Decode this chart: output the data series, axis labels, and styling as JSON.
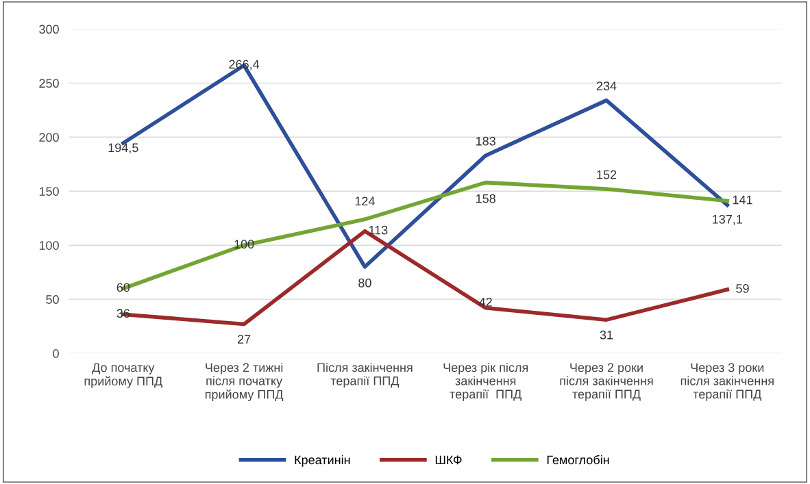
{
  "chart_data": {
    "type": "line",
    "categories": [
      "До початку\nприйому ППД",
      "Через 2 тижні\nпісля початку\nприйому ППД",
      "Після закінчення\nтерапії ППД",
      "Через рік після\nзакінчення\nтерапії  ППД",
      "Через 2 роки\nпісля закінчення\nтерапії ППД",
      "Через 3 роки\nпісля закінчення\nтерапії ППД"
    ],
    "series": [
      {
        "name": "Креатинін",
        "color": "#2e4f9a",
        "values": [
          194.5,
          266.4,
          80,
          183,
          234,
          137.1
        ],
        "value_labels": [
          "194,5",
          "266,4",
          "80",
          "183",
          "234",
          "137,1"
        ]
      },
      {
        "name": "ШКФ",
        "color": "#9c2a2a",
        "values": [
          36,
          27,
          113,
          42,
          31,
          59
        ],
        "value_labels": [
          "36",
          "27",
          "113",
          "42",
          "31",
          "59"
        ]
      },
      {
        "name": "Гемоглобін",
        "color": "#73a533",
        "values": [
          60,
          100,
          124,
          158,
          152,
          141
        ],
        "value_labels": [
          "60",
          "100",
          "124",
          "158",
          "152",
          "141"
        ]
      }
    ],
    "ylim": [
      0,
      300
    ],
    "yticks": [
      0,
      50,
      100,
      150,
      200,
      250,
      300
    ],
    "grid": "y",
    "legend": "bottom",
    "marker": "none",
    "line_style": "solid"
  }
}
